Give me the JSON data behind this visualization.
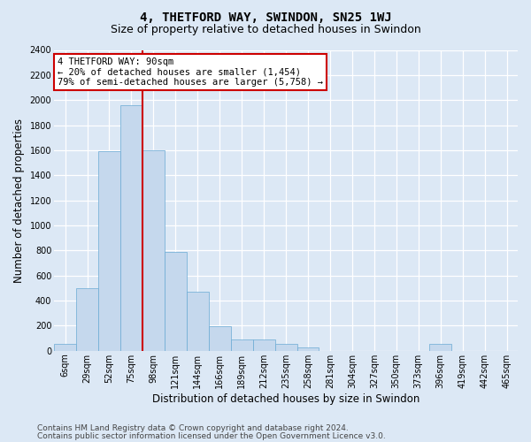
{
  "title": "4, THETFORD WAY, SWINDON, SN25 1WJ",
  "subtitle": "Size of property relative to detached houses in Swindon",
  "xlabel": "Distribution of detached houses by size in Swindon",
  "ylabel": "Number of detached properties",
  "categories": [
    "6sqm",
    "29sqm",
    "52sqm",
    "75sqm",
    "98sqm",
    "121sqm",
    "144sqm",
    "166sqm",
    "189sqm",
    "212sqm",
    "235sqm",
    "258sqm",
    "281sqm",
    "304sqm",
    "327sqm",
    "350sqm",
    "373sqm",
    "396sqm",
    "419sqm",
    "442sqm",
    "465sqm"
  ],
  "values": [
    55,
    500,
    1590,
    1960,
    1600,
    790,
    470,
    195,
    90,
    90,
    55,
    30,
    0,
    0,
    0,
    0,
    0,
    55,
    0,
    0,
    0
  ],
  "bar_color": "#c5d8ed",
  "bar_edge_color": "#6aaad4",
  "vline_color": "#cc0000",
  "vline_x": 4.0,
  "ylim_max": 2400,
  "yticks": [
    0,
    200,
    400,
    600,
    800,
    1000,
    1200,
    1400,
    1600,
    1800,
    2000,
    2200,
    2400
  ],
  "annotation_title": "4 THETFORD WAY: 90sqm",
  "annotation_line1": "← 20% of detached houses are smaller (1,454)",
  "annotation_line2": "79% of semi-detached houses are larger (5,758) →",
  "annotation_box_edge": "#cc0000",
  "bg_color": "#dce8f5",
  "grid_color": "#ffffff",
  "footer_line1": "Contains HM Land Registry data © Crown copyright and database right 2024.",
  "footer_line2": "Contains public sector information licensed under the Open Government Licence v3.0.",
  "title_fontsize": 10,
  "subtitle_fontsize": 9,
  "tick_fontsize": 7,
  "ylabel_fontsize": 8.5,
  "xlabel_fontsize": 8.5,
  "annot_fontsize": 7.5,
  "footer_fontsize": 6.5
}
